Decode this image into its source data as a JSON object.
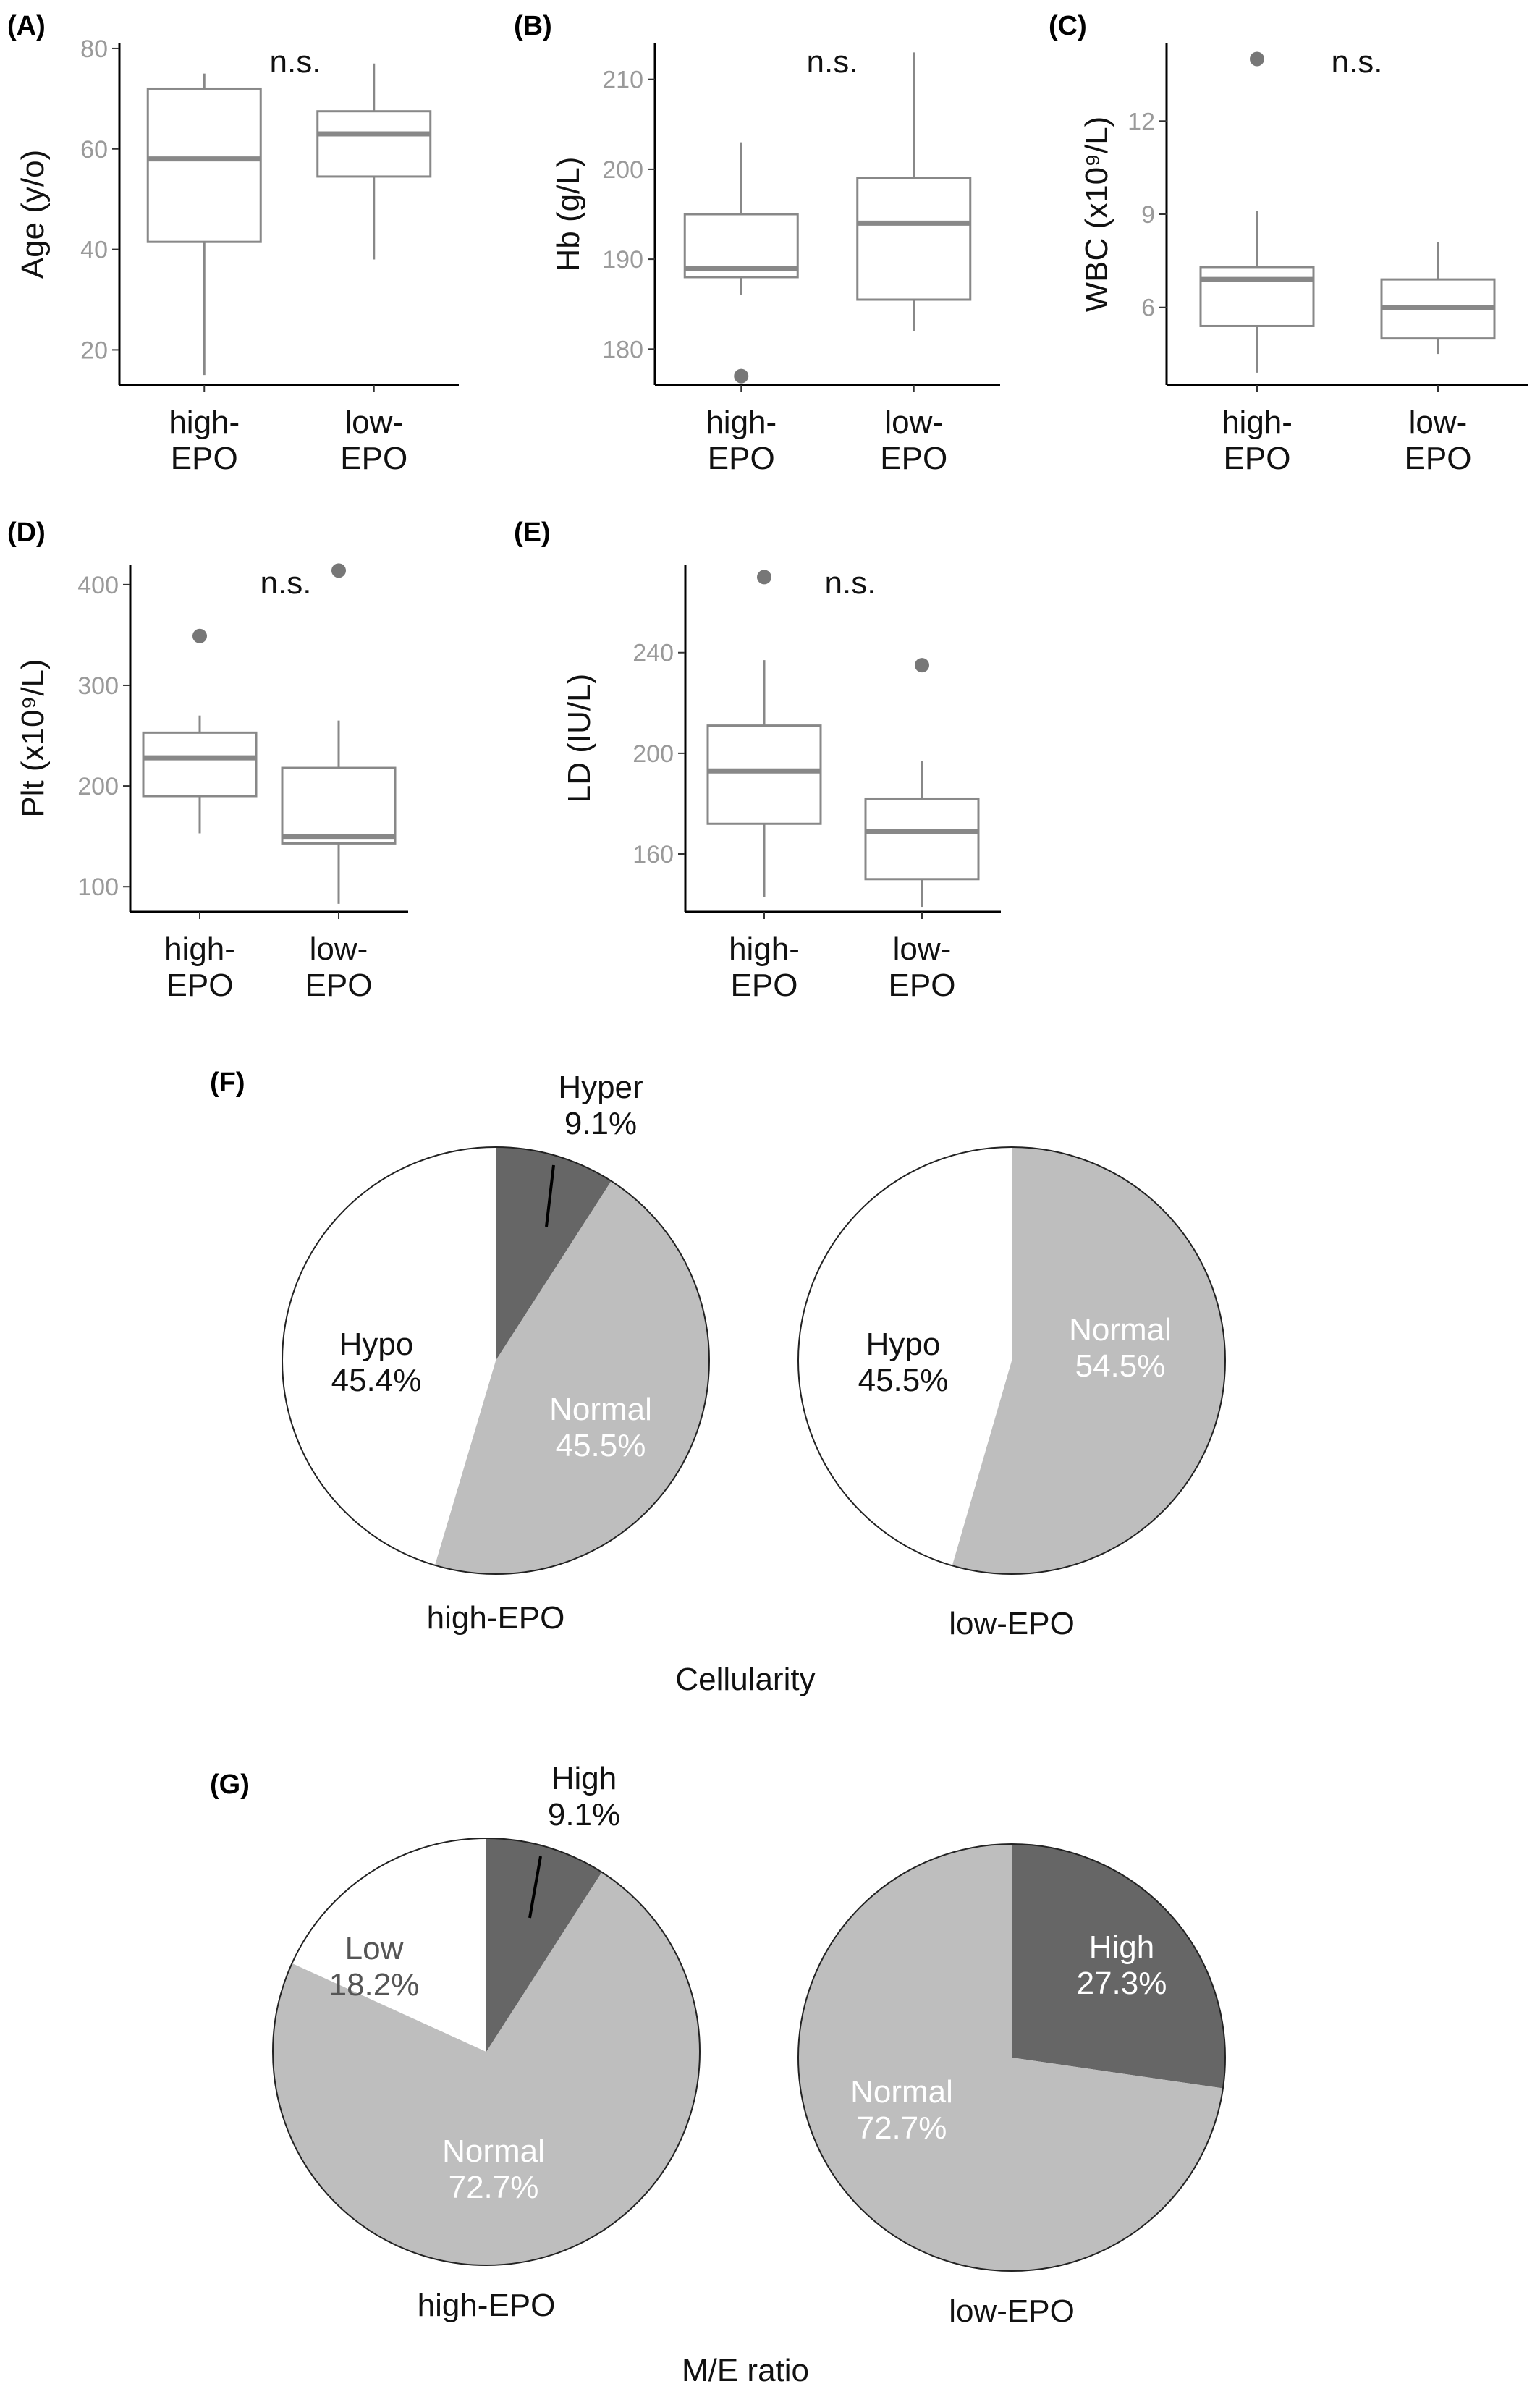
{
  "colors": {
    "box": "#888888",
    "axis": "#000000",
    "outlier": "#777777",
    "pie_dark": "#666666",
    "pie_light": "#bebebe",
    "pie_white": "#ffffff",
    "pie_edge": "#222222"
  },
  "chart_data": [
    {
      "type": "box",
      "panel": "(A)",
      "ylabel": "Age (y/o)",
      "categories": [
        "high-\nEPO",
        "low-\nEPO"
      ],
      "ylim": [
        13,
        81
      ],
      "yticks": [
        20,
        40,
        60,
        80
      ],
      "annotation": "n.s.",
      "boxes": [
        {
          "min": 15,
          "q1": 41.5,
          "median": 58,
          "q3": 72,
          "max": 75,
          "outliers": []
        },
        {
          "min": 38,
          "q1": 54.5,
          "median": 63,
          "q3": 67.5,
          "max": 77,
          "outliers": []
        }
      ]
    },
    {
      "type": "box",
      "panel": "(B)",
      "ylabel": "Hb (g/L)",
      "categories": [
        "high-\nEPO",
        "low-\nEPO"
      ],
      "ylim": [
        176,
        214
      ],
      "yticks": [
        180,
        190,
        200,
        210
      ],
      "annotation": "n.s.",
      "boxes": [
        {
          "min": 186,
          "q1": 188,
          "median": 189,
          "q3": 195,
          "max": 203,
          "outliers": [
            177
          ]
        },
        {
          "min": 182,
          "q1": 185.5,
          "median": 194,
          "q3": 199,
          "max": 213,
          "outliers": []
        }
      ]
    },
    {
      "type": "box",
      "panel": "(C)",
      "ylabel": "WBC (x10⁹/L)",
      "categories": [
        "high-\nEPO",
        "low-\nEPO"
      ],
      "ylim": [
        3.5,
        14.5
      ],
      "yticks": [
        6,
        9,
        12
      ],
      "annotation": "n.s.",
      "boxes": [
        {
          "min": 3.9,
          "q1": 5.4,
          "median": 6.9,
          "q3": 7.3,
          "max": 9.1,
          "outliers": [
            14.0
          ]
        },
        {
          "min": 4.5,
          "q1": 5.0,
          "median": 6.0,
          "q3": 6.9,
          "max": 8.1,
          "outliers": []
        }
      ]
    },
    {
      "type": "box",
      "panel": "(D)",
      "ylabel": "Plt (x10⁹/L)",
      "categories": [
        "high-\nEPO",
        "low-\nEPO"
      ],
      "ylim": [
        75,
        420
      ],
      "yticks": [
        100,
        200,
        300,
        400
      ],
      "annotation": "n.s.",
      "boxes": [
        {
          "min": 153,
          "q1": 190,
          "median": 228,
          "q3": 253,
          "max": 270,
          "outliers": [
            349
          ]
        },
        {
          "min": 83,
          "q1": 143,
          "median": 150,
          "q3": 218,
          "max": 265,
          "outliers": [
            414
          ]
        }
      ]
    },
    {
      "type": "box",
      "panel": "(E)",
      "ylabel": "LD (IU/L)",
      "categories": [
        "high-\nEPO",
        "low-\nEPO"
      ],
      "ylim": [
        137,
        275
      ],
      "yticks": [
        160,
        200,
        240
      ],
      "annotation": "n.s.",
      "boxes": [
        {
          "min": 143,
          "q1": 172,
          "median": 193,
          "q3": 211,
          "max": 237,
          "outliers": [
            270
          ]
        },
        {
          "min": 139,
          "q1": 150,
          "median": 169,
          "q3": 182,
          "max": 197,
          "outliers": [
            235
          ]
        }
      ]
    },
    {
      "type": "pie",
      "panel": "(F)",
      "caption": "Cellularity",
      "pies": [
        {
          "label": "high-EPO",
          "slices": [
            {
              "name": "Hyper",
              "value": 9.1,
              "pct": "9.1%",
              "shade": "dark"
            },
            {
              "name": "Normal",
              "value": 45.5,
              "pct": "45.5%",
              "shade": "light"
            },
            {
              "name": "Hypo",
              "value": 45.4,
              "pct": "45.4%",
              "shade": "white"
            }
          ]
        },
        {
          "label": "low-EPO",
          "slices": [
            {
              "name": "Normal",
              "value": 54.5,
              "pct": "54.5%",
              "shade": "light"
            },
            {
              "name": "Hypo",
              "value": 45.5,
              "pct": "45.5%",
              "shade": "white"
            }
          ]
        }
      ]
    },
    {
      "type": "pie",
      "panel": "(G)",
      "caption": "M/E ratio",
      "pies": [
        {
          "label": "high-EPO",
          "slices": [
            {
              "name": "High",
              "value": 9.1,
              "pct": "9.1%",
              "shade": "dark"
            },
            {
              "name": "Normal",
              "value": 72.7,
              "pct": "72.7%",
              "shade": "light"
            },
            {
              "name": "Low",
              "value": 18.2,
              "pct": "18.2%",
              "shade": "white"
            }
          ]
        },
        {
          "label": "low-EPO",
          "slices": [
            {
              "name": "High",
              "value": 27.3,
              "pct": "27.3%",
              "shade": "dark"
            },
            {
              "name": "Normal",
              "value": 72.7,
              "pct": "72.7%",
              "shade": "light"
            }
          ]
        }
      ]
    }
  ]
}
